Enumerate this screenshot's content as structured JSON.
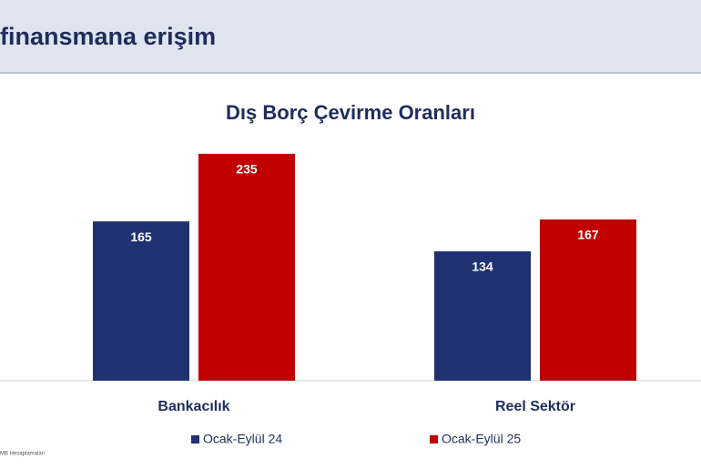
{
  "header": {
    "title": "finansmana erişim"
  },
  "chart_data": {
    "type": "bar",
    "title": "Dış Borç Çevirme Oranları",
    "categories": [
      "Bankacılık",
      "Reel Sektör"
    ],
    "series": [
      {
        "name": "Ocak-Eylül 24",
        "color": "#1f3170",
        "values": [
          165,
          134
        ]
      },
      {
        "name": "Ocak-Eylül 25",
        "color": "#c00000",
        "values": [
          235,
          167
        ]
      }
    ],
    "ylim": [
      0,
      250
    ]
  },
  "footer": {
    "source": "MB Hesaplamaları"
  }
}
